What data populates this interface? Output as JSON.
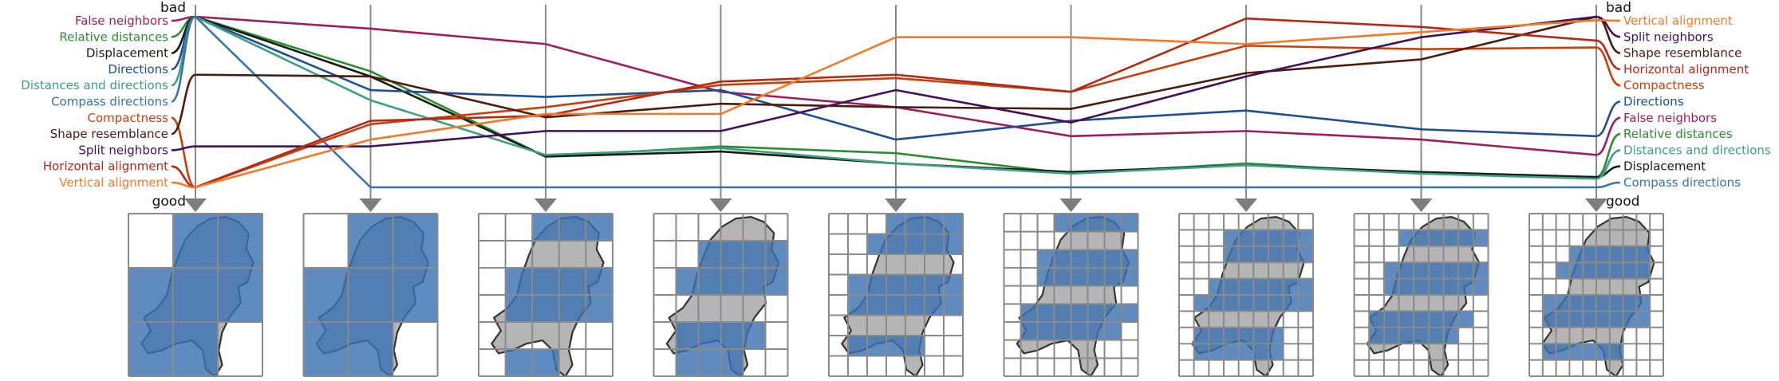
{
  "chart_data": {
    "type": "line",
    "subtype": "parallel-coordinates",
    "num_axes": 9,
    "top_label": "bad",
    "bottom_label": "good",
    "y_range": [
      0,
      1
    ],
    "y_direction": "0 = good (bottom), 1 = bad (top)",
    "series": [
      {
        "name": "False neighbors",
        "color": "#9b1f5c",
        "values": [
          1.0,
          0.93,
          0.84,
          0.56,
          0.47,
          0.3,
          0.33,
          0.28,
          0.19
        ]
      },
      {
        "name": "Relative distances",
        "color": "#2e8b34",
        "values": [
          1.0,
          0.68,
          0.18,
          0.24,
          0.2,
          0.08,
          0.14,
          0.08,
          0.06
        ]
      },
      {
        "name": "Displacement",
        "color": "#151d10",
        "values": [
          1.0,
          0.65,
          0.18,
          0.21,
          0.14,
          0.09,
          0.13,
          0.09,
          0.06
        ]
      },
      {
        "name": "Directions",
        "color": "#1f4f8f",
        "values": [
          1.0,
          0.57,
          0.53,
          0.57,
          0.28,
          0.39,
          0.45,
          0.34,
          0.3
        ]
      },
      {
        "name": "Distances and directions",
        "color": "#3e9e86",
        "values": [
          1.0,
          0.51,
          0.19,
          0.23,
          0.14,
          0.08,
          0.13,
          0.08,
          0.05
        ]
      },
      {
        "name": "Compass directions",
        "color": "#3a73a8",
        "values": [
          1.0,
          0.0,
          0.0,
          0.0,
          0.0,
          0.0,
          0.0,
          0.0,
          0.0
        ]
      },
      {
        "name": "Compactness",
        "color": "#c4410e",
        "values": [
          0.0,
          0.37,
          0.47,
          0.6,
          0.64,
          0.56,
          0.83,
          0.81,
          0.82
        ]
      },
      {
        "name": "Shape resemblance",
        "color": "#4a1c0e",
        "values": [
          0.66,
          0.65,
          0.41,
          0.49,
          0.47,
          0.46,
          0.67,
          0.75,
          1.0
        ]
      },
      {
        "name": "Split neighbors",
        "color": "#441056",
        "values": [
          0.24,
          0.24,
          0.33,
          0.33,
          0.57,
          0.38,
          0.65,
          0.88,
          1.0
        ]
      },
      {
        "name": "Horizontal alignment",
        "color": "#b22a16",
        "values": [
          0.0,
          0.39,
          0.42,
          0.62,
          0.66,
          0.56,
          0.99,
          0.94,
          0.86
        ]
      },
      {
        "name": "Vertical alignment",
        "color": "#f07a28",
        "values": [
          0.0,
          0.28,
          0.43,
          0.43,
          0.88,
          0.88,
          0.84,
          0.91,
          0.98
        ]
      }
    ],
    "left_label_order": [
      "False neighbors",
      "Relative distances",
      "Displacement",
      "Directions",
      "Distances and directions",
      "Compass directions",
      "Compactness",
      "Shape resemblance",
      "Split neighbors",
      "Horizontal alignment",
      "Vertical alignment"
    ],
    "right_label_order": [
      "Vertical alignment",
      "Split neighbors",
      "Shape resemblance",
      "Horizontal alignment",
      "Compactness",
      "Directions",
      "False neighbors",
      "Relative distances",
      "Distances and directions",
      "Displacement",
      "Compass directions"
    ],
    "grid_maps": [
      {
        "cols": 3,
        "rows": 3
      },
      {
        "cols": 3,
        "rows": 3
      },
      {
        "cols": 5,
        "rows": 6
      },
      {
        "cols": 6,
        "rows": 6
      },
      {
        "cols": 7,
        "rows": 8
      },
      {
        "cols": 8,
        "rows": 9
      },
      {
        "cols": 9,
        "rows": 10
      },
      {
        "cols": 9,
        "rows": 10
      },
      {
        "cols": 10,
        "rows": 10
      }
    ]
  },
  "colors": {
    "axis": "#8a8a8a",
    "map_fill": "#b5b5b5",
    "map_outline": "#333333",
    "cell_blue": "#3c72b0",
    "grid_line": "#8a8a8a"
  }
}
